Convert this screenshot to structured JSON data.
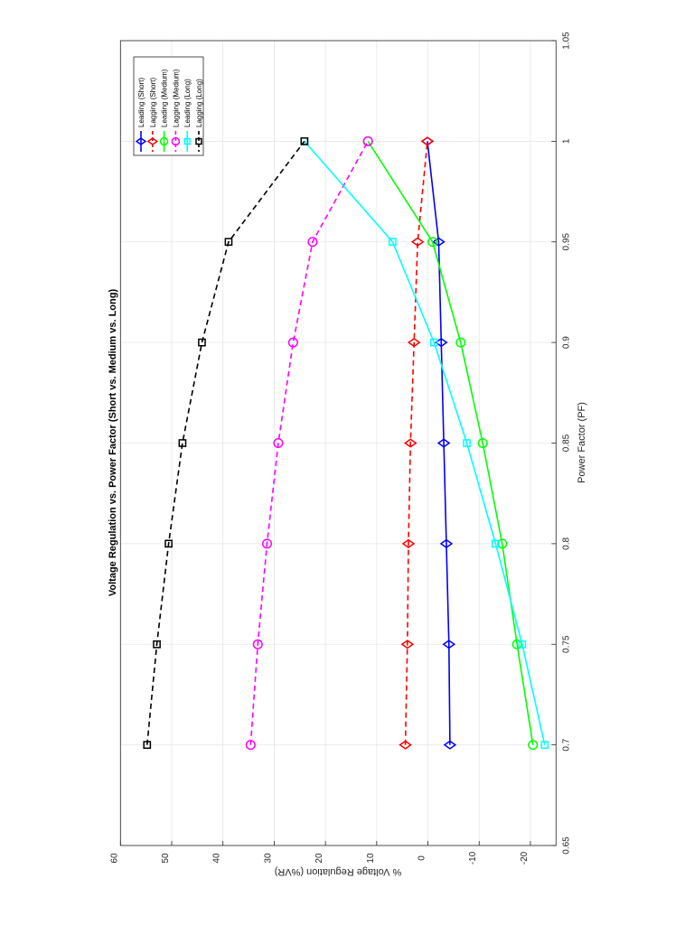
{
  "chart_data": {
    "type": "line",
    "title": "Voltage Regulation vs. Power Factor (Short vs. Medium vs. Long)",
    "xlabel": "Power Factor (PF)",
    "ylabel": "% Voltage Regulation (%VR)",
    "xlim": [
      0.65,
      1.05
    ],
    "ylim": [
      -25,
      60
    ],
    "xticks": [
      0.65,
      0.7,
      0.75,
      0.8,
      0.85,
      0.9,
      0.95,
      1,
      1.05
    ],
    "xtick_labels": [
      "0.65",
      "0.7",
      "0.75",
      "0.8",
      "0.85",
      "0.9",
      "0.95",
      "1",
      "1.05"
    ],
    "yticks": [
      -20,
      -10,
      0,
      10,
      20,
      30,
      40,
      50,
      60
    ],
    "ytick_labels": [
      "-20",
      "-10",
      "0",
      "10",
      "20",
      "30",
      "40",
      "50",
      "60"
    ],
    "grid": true,
    "legend_position": "northeast",
    "orientation": "rotated 90 degrees counter-clockwise on page",
    "x": [
      0.7,
      0.75,
      0.8,
      0.85,
      0.9,
      0.95,
      1.0
    ],
    "series": [
      {
        "name": "Leading (Short)",
        "color": "#0000ff",
        "line": "solid",
        "marker": "diamond",
        "values": [
          -4.3,
          -4.1,
          -3.6,
          -3.1,
          -2.6,
          -2.1,
          0.1
        ]
      },
      {
        "name": "Lagging (Short)",
        "color": "#ff0000",
        "line": "dashed",
        "marker": "diamond",
        "values": [
          4.4,
          4.0,
          3.8,
          3.4,
          2.7,
          2.0,
          0.1
        ]
      },
      {
        "name": "Leading (Medium)",
        "color": "#00ff00",
        "line": "solid",
        "marker": "circle",
        "values": [
          -20.5,
          -17.4,
          -14.5,
          -10.7,
          -6.4,
          -0.9,
          11.7
        ]
      },
      {
        "name": "Lagging (Medium)",
        "color": "#ff00ff",
        "line": "dashed",
        "marker": "circle",
        "values": [
          34.6,
          33.2,
          31.4,
          29.2,
          26.3,
          22.5,
          11.7
        ]
      },
      {
        "name": "Leading (Long)",
        "color": "#00ffff",
        "line": "solid",
        "marker": "square",
        "values": [
          -22.8,
          -18.4,
          -13.2,
          -7.6,
          -1.2,
          6.9,
          24.1
        ]
      },
      {
        "name": "Lagging (Long)",
        "color": "#000000",
        "line": "dashed",
        "marker": "square",
        "values": [
          54.8,
          52.9,
          50.6,
          47.9,
          44.1,
          38.9,
          24.1
        ]
      }
    ]
  }
}
